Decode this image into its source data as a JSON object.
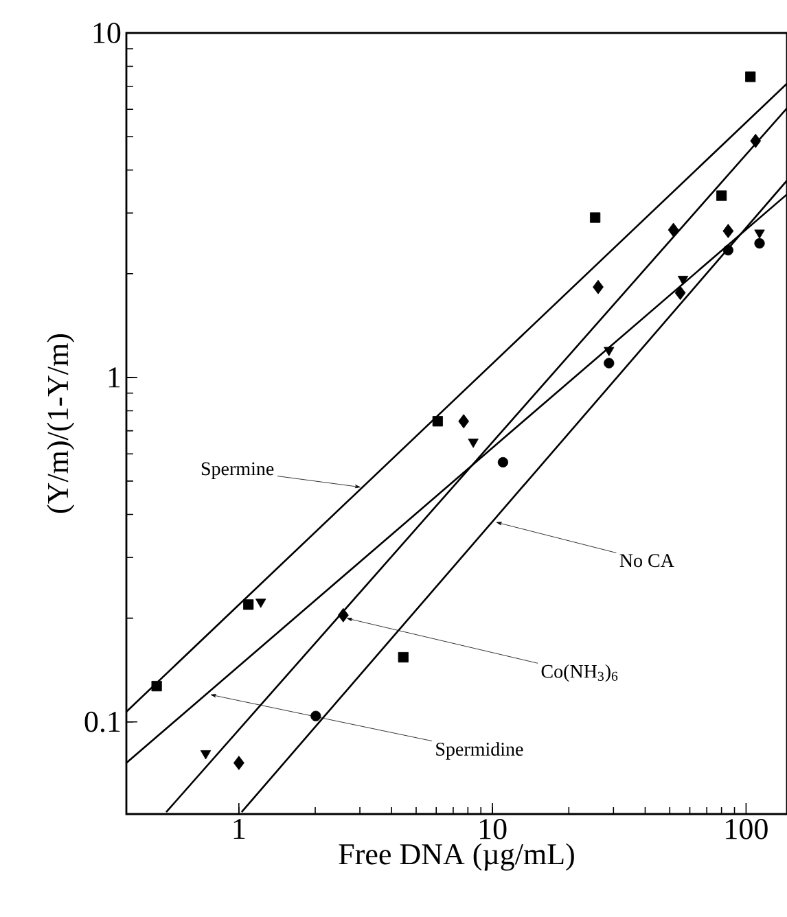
{
  "chart_data": {
    "type": "scatter",
    "xlabel": "Free DNA (µg/mL)",
    "ylabel": "(Y/m)/(1-Y/m)",
    "log": "xy",
    "xlim": [
      0.36,
      145
    ],
    "ylim": [
      0.054,
      10
    ],
    "xticks": [
      1,
      10,
      100
    ],
    "yticks": [
      0.1,
      1,
      10
    ],
    "annotations": [
      {
        "text": "Spermine",
        "x": 3.03,
        "y": 0.48
      },
      {
        "text": "No CA",
        "x": 10.3,
        "y": 0.38
      },
      {
        "text": "Co(NH$_{3}$)$_{6}$",
        "x": 2.65,
        "y": 0.2
      },
      {
        "text": "Spermidine",
        "x": 0.77,
        "y": 0.12
      }
    ],
    "series": [
      {
        "marker": "square",
        "color": "#000000",
        "x": [
          0.474,
          1.09,
          4.45,
          6.08,
          25.4,
          80,
          104
        ],
        "values": [
          0.127,
          0.219,
          0.154,
          0.746,
          2.91,
          3.37,
          7.46
        ]
      },
      {
        "marker": "triangle",
        "color": "#000000",
        "x": [
          0.74,
          1.22,
          8.4,
          28.8,
          56.4,
          113
        ],
        "values": [
          0.081,
          0.223,
          0.65,
          1.2,
          1.93,
          2.63
        ]
      },
      {
        "marker": "diamond",
        "color": "#000000",
        "x": [
          1.0,
          2.58,
          7.7,
          26.1,
          51.7,
          55,
          85,
          109
        ],
        "values": [
          0.076,
          0.204,
          0.746,
          1.83,
          2.68,
          1.76,
          2.66,
          4.86
        ]
      },
      {
        "marker": "circle",
        "color": "#000000",
        "x": [
          2.01,
          11.0,
          28.8,
          85,
          113
        ],
        "values": [
          0.104,
          0.567,
          1.1,
          2.34,
          2.45
        ]
      },
      {
        "type": "line",
        "marker": "none",
        "color": "#000000",
        "x": [
          0.36,
          145
        ],
        "values": [
          0.107,
          7.13
        ]
      },
      {
        "type": "line",
        "marker": "none",
        "color": "#000000",
        "x": [
          0.36,
          145
        ],
        "values": [
          0.076,
          3.4
        ]
      },
      {
        "type": "line",
        "marker": "none",
        "color": "#000000",
        "x": [
          0.517,
          145
        ],
        "values": [
          0.0547,
          6.05
        ]
      },
      {
        "type": "line",
        "marker": "none",
        "color": "#000000",
        "x": [
          1.025,
          145
        ],
        "values": [
          0.0547,
          3.73
        ]
      }
    ]
  }
}
